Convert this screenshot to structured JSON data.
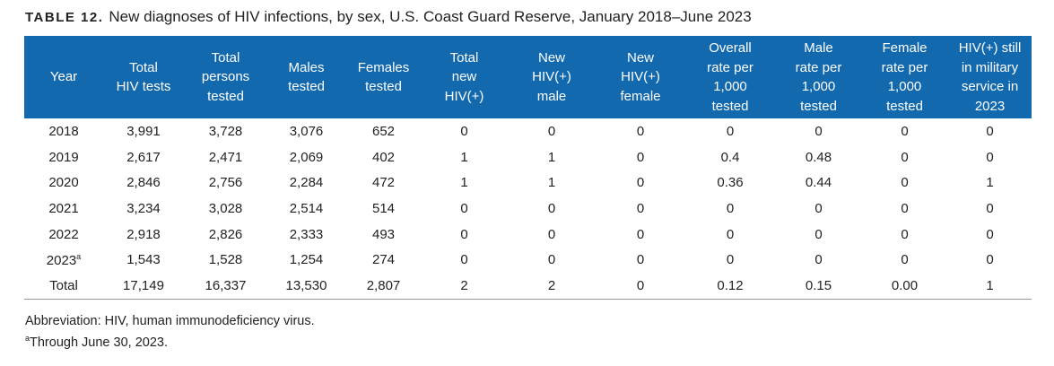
{
  "title": {
    "label": "TABLE 12.",
    "text": "New diagnoses of HIV infections, by sex, U.S. Coast Guard Reserve, January 2018–June 2023"
  },
  "table": {
    "header": [
      [
        "Year"
      ],
      [
        "Total",
        "HIV tests"
      ],
      [
        "Total",
        "persons",
        "tested"
      ],
      [
        "Males",
        "tested"
      ],
      [
        "Females",
        "tested"
      ],
      [
        "Total",
        "new",
        "HIV(+)"
      ],
      [
        "New",
        "HIV(+)",
        "male"
      ],
      [
        "New",
        "HIV(+)",
        "female"
      ],
      [
        "Overall",
        "rate per",
        "1,000",
        "tested"
      ],
      [
        "Male",
        "rate per",
        "1,000",
        "tested"
      ],
      [
        "Female",
        "rate per",
        "1,000",
        "tested"
      ],
      [
        "HIV(+) still",
        "in military",
        "service in",
        "2023"
      ]
    ],
    "rows": [
      [
        {
          "text": "2018"
        },
        "3,991",
        "3,728",
        "3,076",
        "652",
        "0",
        "0",
        "0",
        "0",
        "0",
        "0",
        "0"
      ],
      [
        {
          "text": "2019"
        },
        "2,617",
        "2,471",
        "2,069",
        "402",
        "1",
        "1",
        "0",
        "0.4",
        "0.48",
        "0",
        "0"
      ],
      [
        {
          "text": "2020"
        },
        "2,846",
        "2,756",
        "2,284",
        "472",
        "1",
        "1",
        "0",
        "0.36",
        "0.44",
        "0",
        "1"
      ],
      [
        {
          "text": "2021"
        },
        "3,234",
        "3,028",
        "2,514",
        "514",
        "0",
        "0",
        "0",
        "0",
        "0",
        "0",
        "0"
      ],
      [
        {
          "text": "2022"
        },
        "2,918",
        "2,826",
        "2,333",
        "493",
        "0",
        "0",
        "0",
        "0",
        "0",
        "0",
        "0"
      ],
      [
        {
          "text": "2023",
          "note_mark": "a"
        },
        "1,543",
        "1,528",
        "1,254",
        "274",
        "0",
        "0",
        "0",
        "0",
        "0",
        "0",
        "0"
      ],
      [
        {
          "text": "Total"
        },
        "17,149",
        "16,337",
        "13,530",
        "2,807",
        "2",
        "2",
        "0",
        "0.12",
        "0.15",
        "0.00",
        "1"
      ]
    ]
  },
  "notes": {
    "abbreviation": "Abbreviation: HIV, human immunodeficiency virus.",
    "footnote": {
      "mark": "a",
      "text": "Through June 30, 2023."
    }
  }
}
